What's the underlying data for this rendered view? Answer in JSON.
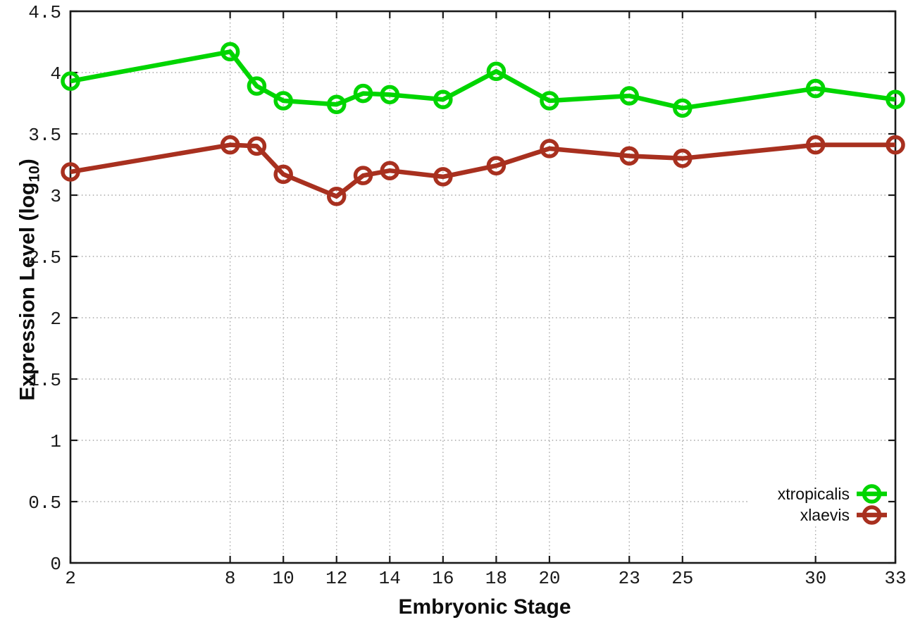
{
  "chart_data": {
    "type": "line",
    "title": "",
    "xlabel": "Embryonic Stage",
    "ylabel": "Expression Level (log10)",
    "ylabel_parts": {
      "main": "Expression Level (log",
      "sub": "10",
      "close": ")"
    },
    "x": [
      2,
      8,
      9,
      10,
      12,
      13,
      14,
      16,
      18,
      20,
      23,
      25,
      30,
      33
    ],
    "series": [
      {
        "name": "xtropicalis",
        "color": "#00d500",
        "values": [
          3.93,
          4.17,
          3.89,
          3.77,
          3.74,
          3.83,
          3.82,
          3.78,
          4.01,
          3.77,
          3.81,
          3.71,
          3.87,
          3.78
        ]
      },
      {
        "name": "xlaevis",
        "color": "#a8301f",
        "values": [
          3.19,
          3.41,
          3.4,
          3.17,
          2.99,
          3.16,
          3.2,
          3.15,
          3.24,
          3.38,
          3.32,
          3.3,
          3.41,
          3.41
        ]
      }
    ],
    "xlim": [
      2,
      33
    ],
    "ylim": [
      0,
      4.5
    ],
    "x_ticks": [
      2,
      8,
      10,
      12,
      14,
      16,
      18,
      20,
      23,
      25,
      30,
      33
    ],
    "y_ticks": [
      0,
      0.5,
      1,
      1.5,
      2,
      2.5,
      3,
      3.5,
      4,
      4.5
    ],
    "grid": true,
    "grid_style": "dotted",
    "marker": "open-circle",
    "legend_position": "bottom-right",
    "legend_entries": [
      "xtropicalis",
      "xlaevis"
    ]
  }
}
